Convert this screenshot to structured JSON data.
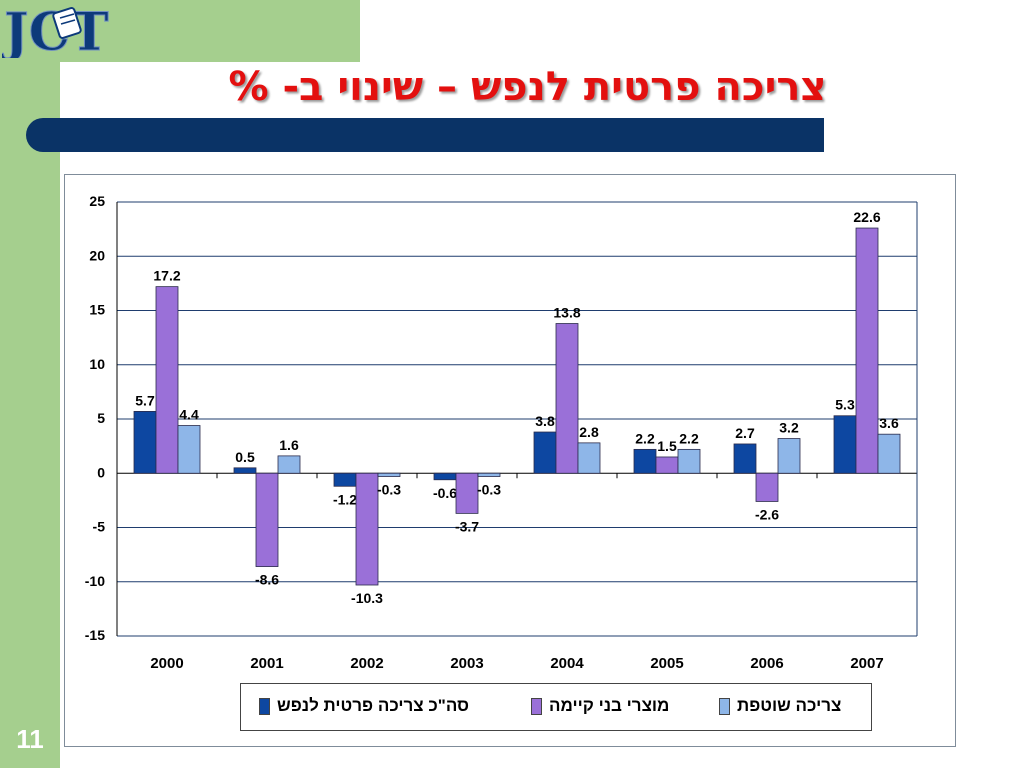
{
  "slide": {
    "title": "צריכה פרטית לנפש – שינוי ב- %",
    "page_number": "11",
    "logo_text": "JCT"
  },
  "colors": {
    "band": "#a5cf8e",
    "title": "#e3100f",
    "title_bar": "#0a3366",
    "series": [
      "#0d47a1",
      "#9a70d8",
      "#8eb6e8"
    ]
  },
  "chart_data": {
    "type": "bar",
    "categories": [
      "2000",
      "2001",
      "2002",
      "2003",
      "2004",
      "2005",
      "2006",
      "2007"
    ],
    "ylim": [
      -15,
      25
    ],
    "yticks": [
      25,
      20,
      15,
      10,
      5,
      0,
      -5,
      -10,
      -15
    ],
    "grid": true,
    "legend_position": "bottom",
    "series": [
      {
        "name": "סה\"כ צריכה פרטית לנפש",
        "values": [
          5.7,
          0.5,
          -1.2,
          -0.6,
          3.8,
          2.2,
          2.7,
          5.3
        ]
      },
      {
        "name": "מוצרי בני קיימה",
        "values": [
          17.2,
          -8.6,
          -10.3,
          -3.7,
          13.8,
          1.5,
          -2.6,
          22.6
        ]
      },
      {
        "name": "צריכה שוטפת",
        "values": [
          4.4,
          1.6,
          -0.3,
          -0.3,
          2.8,
          2.2,
          3.2,
          3.6
        ]
      }
    ]
  }
}
